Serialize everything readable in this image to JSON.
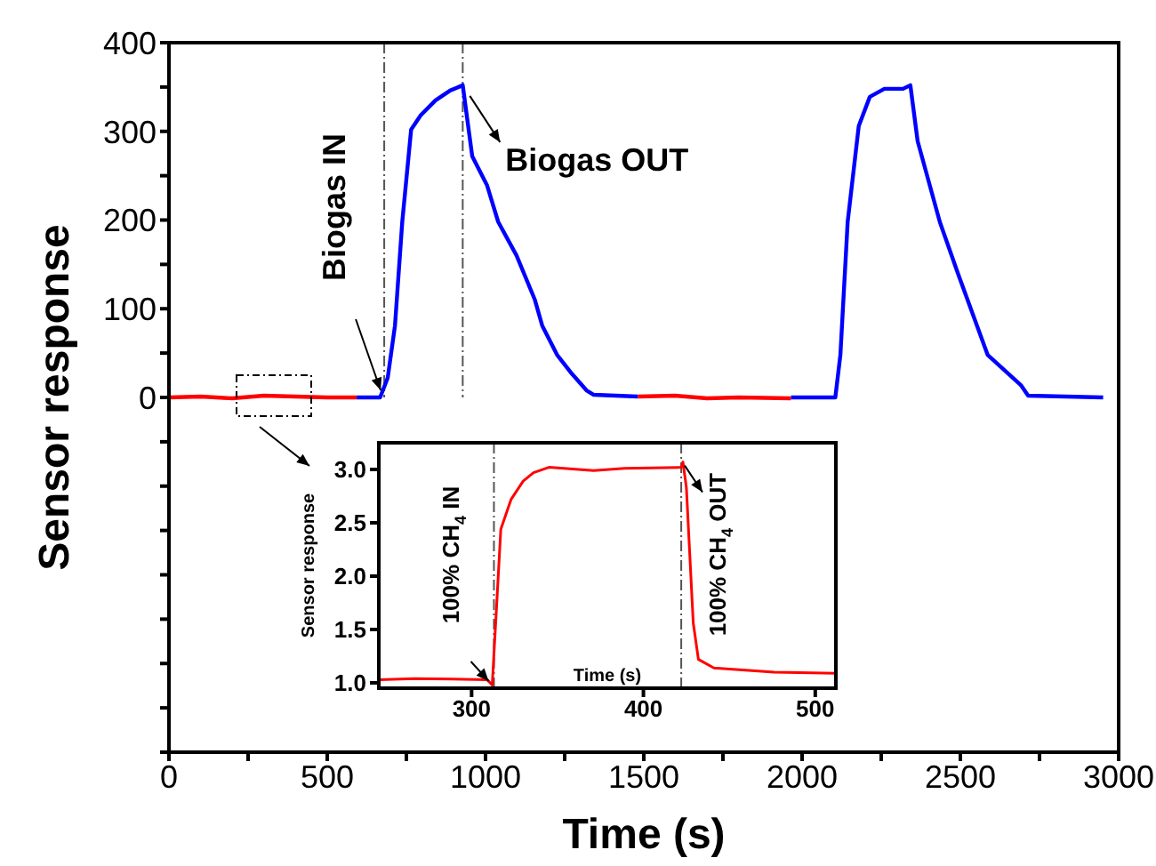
{
  "chart_data": [
    {
      "type": "line",
      "xlabel": "Time (s)",
      "ylabel": "Sensor response",
      "xlim": [
        0,
        3000
      ],
      "xticks": [
        0,
        {
          "value": 250,
          "label": null
        },
        500,
        {
          "value": 750,
          "label": null
        },
        1000,
        {
          "value": 1250,
          "label": null
        },
        1500,
        {
          "value": 1750,
          "label": null
        },
        2000,
        {
          "value": 2250,
          "label": null
        },
        2500,
        {
          "value": 2750,
          "label": null
        },
        3000
      ],
      "ylim": [
        -400,
        400
      ],
      "yticks": [
        {
          "value": -400,
          "label": null
        },
        {
          "value": -350,
          "label": null
        },
        {
          "value": -300,
          "label": null
        },
        {
          "value": -250,
          "label": null
        },
        {
          "value": -200,
          "label": null
        },
        {
          "value": -150,
          "label": null
        },
        {
          "value": -100,
          "label": null
        },
        {
          "value": -50,
          "label": null
        },
        0,
        {
          "value": 50,
          "label": null
        },
        100,
        {
          "value": 150,
          "label": null
        },
        200,
        {
          "value": 250,
          "label": null
        },
        300,
        {
          "value": 350,
          "label": null
        },
        400
      ],
      "series": [
        {
          "color": "#ff0000",
          "x": [
            0,
            100,
            200,
            300,
            400,
            500,
            593,
            null,
            1481,
            1600,
            1700,
            1800,
            1965
          ],
          "values": [
            0,
            1,
            -1,
            2,
            1,
            0,
            0,
            null,
            1,
            2,
            -1,
            0,
            -1
          ]
        },
        {
          "color": "#0000ff",
          "x": [
            593,
            667,
            691,
            714,
            737,
            765,
            795,
            842,
            888,
            928,
            958,
            1005,
            1040,
            1098,
            1156,
            1179,
            1226,
            1272,
            1319,
            1342,
            1481,
            null,
            1965,
            2105,
            2121,
            2144,
            2179,
            2214,
            2260,
            2319,
            2342,
            2365,
            2435,
            2493,
            2586,
            2691,
            2714,
            2951
          ],
          "values": [
            0,
            0,
            22,
            81,
            198,
            302,
            318,
            335,
            346,
            352,
            272,
            239,
            198,
            160,
            110,
            81,
            48,
            27,
            8,
            3,
            1,
            null,
            0,
            0,
            48,
            198,
            306,
            339,
            348,
            348,
            352,
            289,
            198,
            139,
            48,
            14,
            2,
            0
          ]
        }
      ],
      "ref_lines": [
        {
          "axis": "x",
          "value": 680,
          "color": "#555555",
          "line_style": "dashdot"
        },
        {
          "axis": "x",
          "value": 928,
          "color": "#555555",
          "line_style": "dashdot"
        }
      ],
      "annotations": [
        {
          "text": "Biogas IN",
          "x": 680,
          "y": 0
        },
        {
          "text": "Biogas OUT",
          "x": 928,
          "y": 352
        }
      ],
      "legend": false,
      "grid": false,
      "marker": "none"
    },
    {
      "type": "line",
      "xlabel": "Time (s)",
      "ylabel": "Sensor response",
      "xlim": [
        246,
        512
      ],
      "xticks": [
        300,
        400,
        500
      ],
      "ylim": [
        0.95,
        3.25
      ],
      "yticks": [
        {
          "value": 1,
          "label": "1.0"
        },
        {
          "value": 1.5,
          "label": "1.5"
        },
        {
          "value": 2,
          "label": "2.0"
        },
        {
          "value": 2.5,
          "label": "2.5"
        },
        {
          "value": 3,
          "label": "3.0"
        }
      ],
      "series": [
        {
          "color": "#ff0000",
          "x": [
            246,
            267,
            309,
            312,
            314,
            317,
            323,
            330,
            336,
            345,
            371,
            389,
            422,
            423,
            425,
            429,
            432,
            441,
            476,
            512
          ],
          "values": [
            1.03,
            1.04,
            1.03,
            0.98,
            1.56,
            2.44,
            2.72,
            2.89,
            2.97,
            3.02,
            2.99,
            3.01,
            3.02,
            3.07,
            2.83,
            1.56,
            1.22,
            1.14,
            1.1,
            1.09
          ]
        }
      ],
      "ref_lines": [
        {
          "axis": "x",
          "value": 313,
          "color": "#555555",
          "line_style": "dashdot"
        },
        {
          "axis": "x",
          "value": 422,
          "color": "#555555",
          "line_style": "dashdot"
        }
      ],
      "annotations": [
        {
          "text": "100% CH$_{4}$ IN",
          "x": 312,
          "y": 1.0
        },
        {
          "text": "100% CH$_{4}$ OUT",
          "x": 423,
          "y": 3.07
        }
      ],
      "legend": false,
      "grid": false,
      "marker": "none"
    }
  ]
}
